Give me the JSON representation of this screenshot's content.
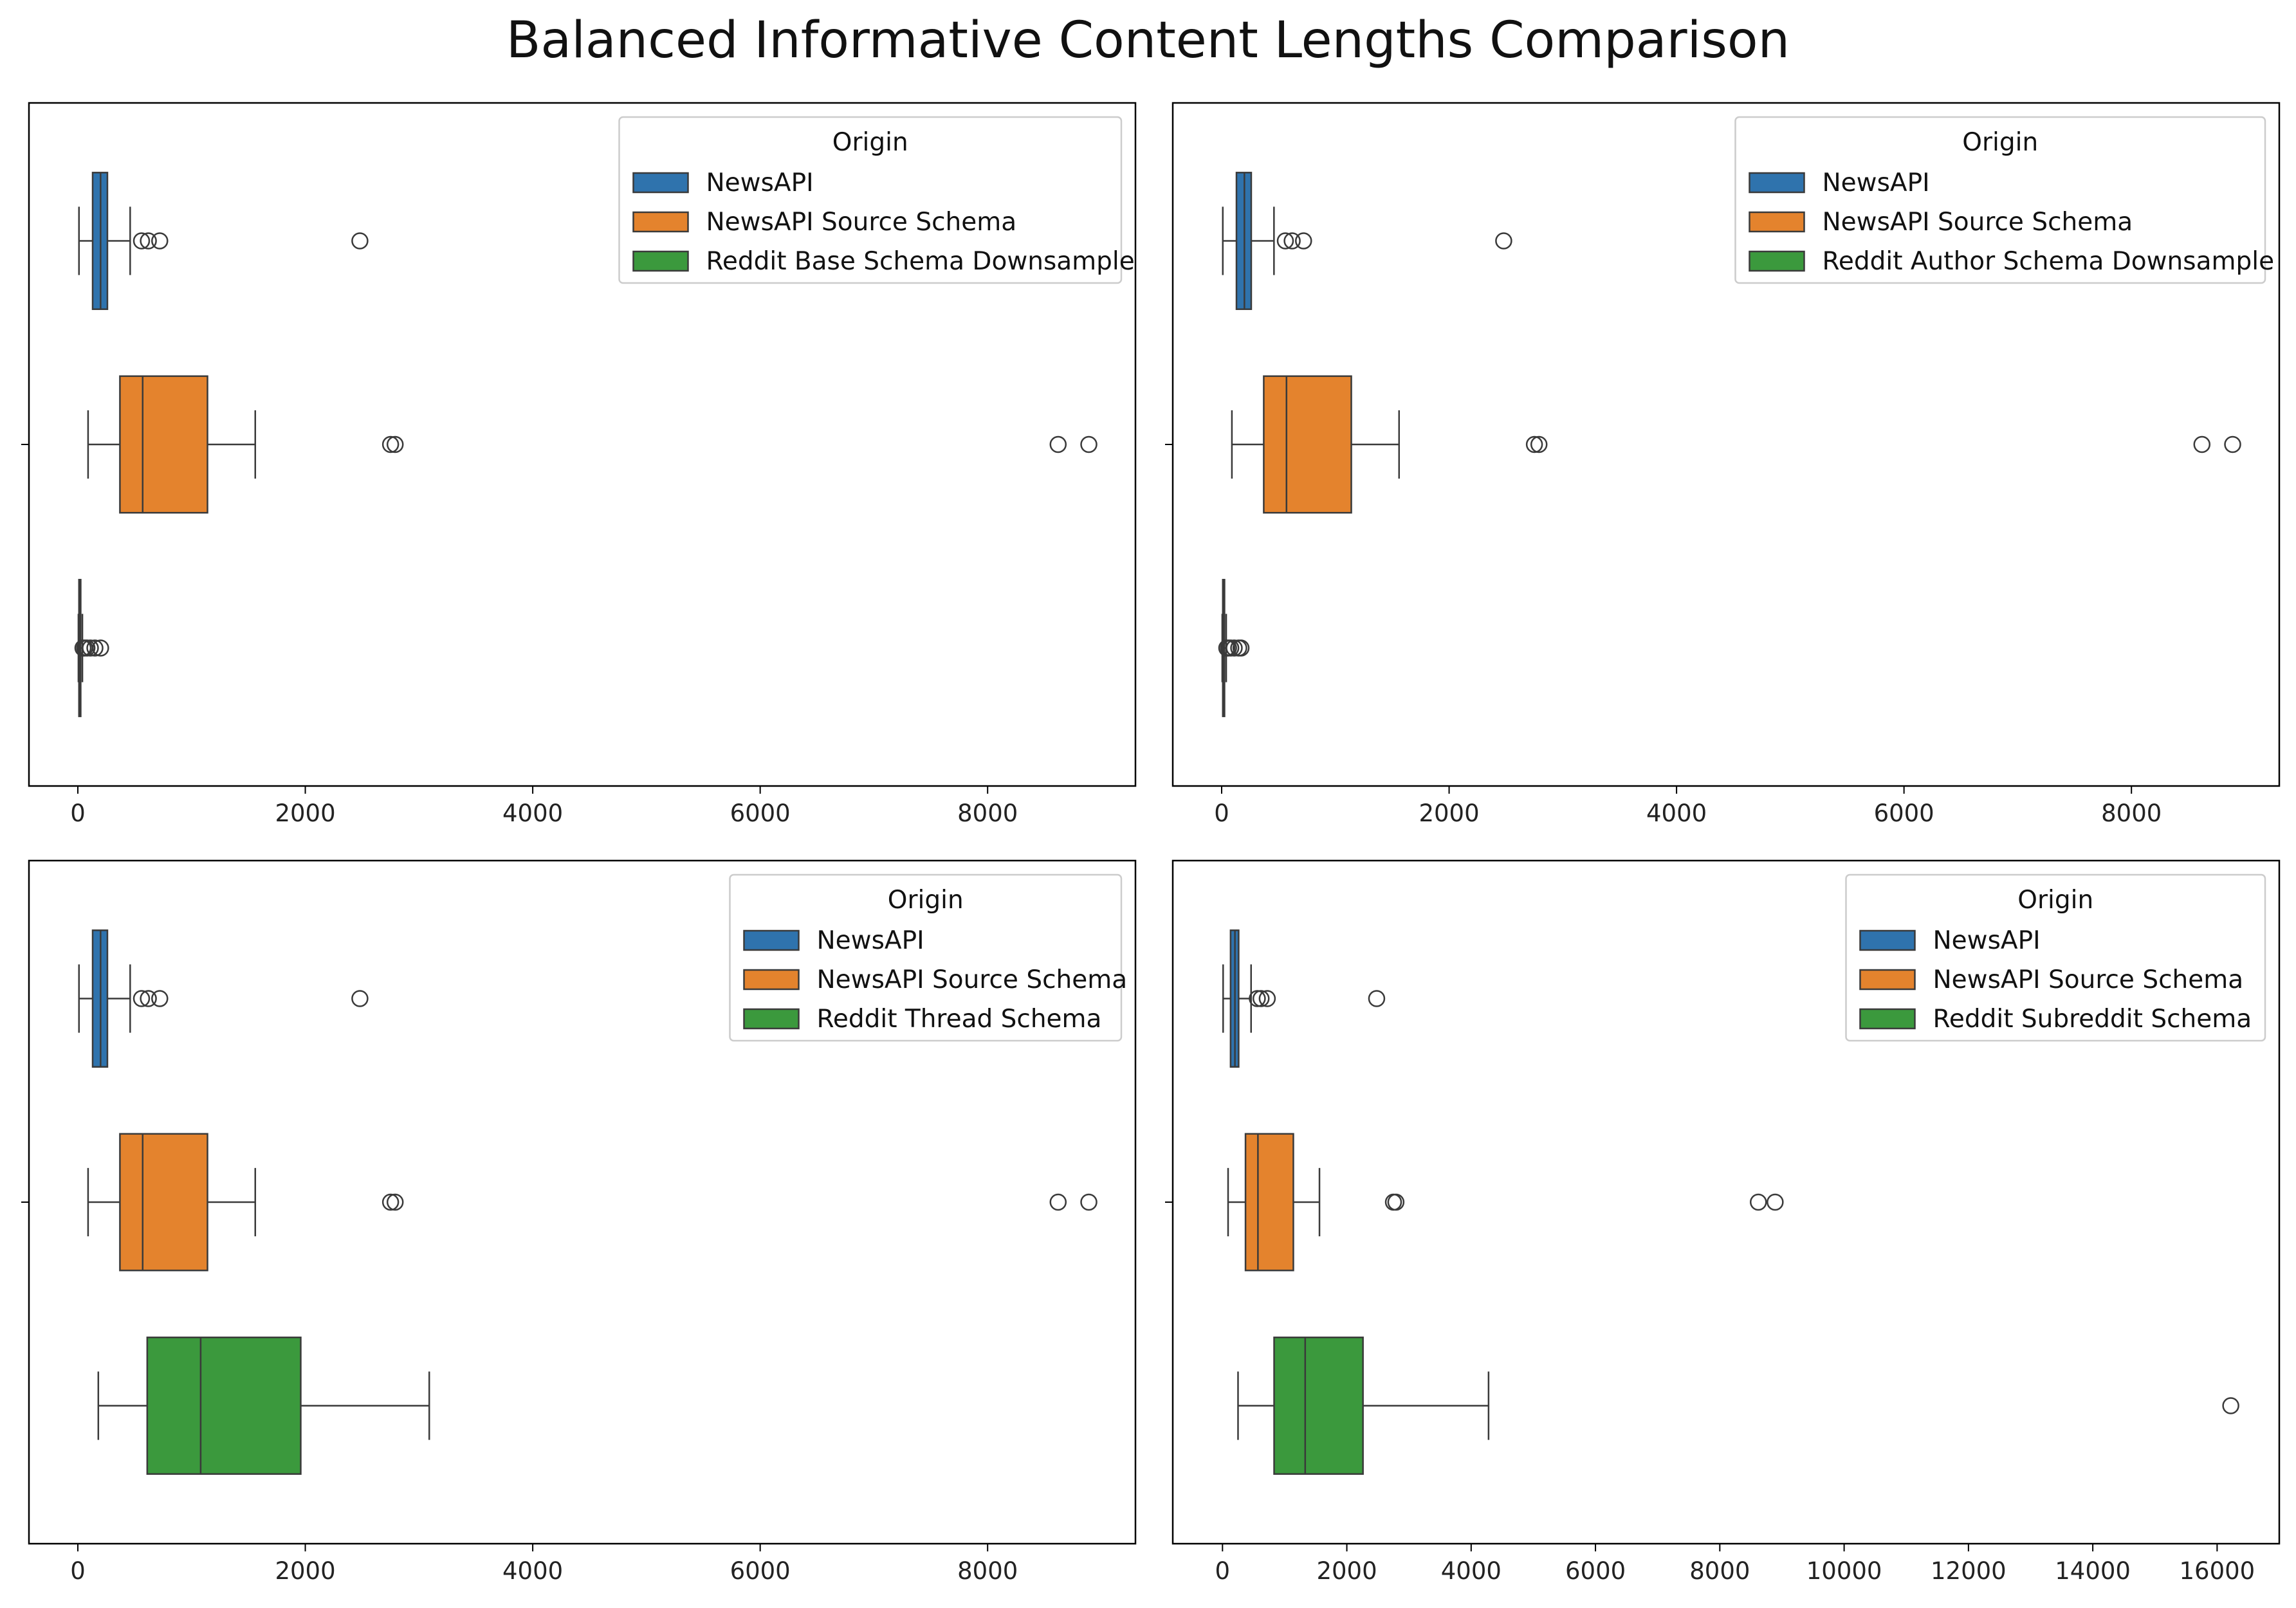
{
  "figure": {
    "title": "Balanced Informative Content Lengths Comparison"
  },
  "colors": {
    "NewsAPI": "#2f73ad",
    "NewsAPI Source Schema": "#e4832d",
    "Reddit": "#3b993d",
    "edge": "#3a3a3a"
  },
  "chart_data": [
    {
      "type": "boxplot",
      "orientation": "horizontal",
      "xlim": [
        -430,
        9300
      ],
      "xticks": [
        0,
        2000,
        4000,
        6000,
        8000
      ],
      "legend": {
        "title": "Origin",
        "placement": "top-right"
      },
      "series": [
        {
          "name": "NewsAPI",
          "color": "#2f73ad",
          "whisker_low": 10,
          "q1": 130,
          "median": 200,
          "q3": 260,
          "whisker_high": 460,
          "outliers": [
            560,
            620,
            720,
            2480
          ]
        },
        {
          "name": "NewsAPI Source Schema",
          "color": "#e4832d",
          "whisker_low": 90,
          "q1": 370,
          "median": 570,
          "q3": 1140,
          "whisker_high": 1560,
          "outliers": [
            2750,
            2790,
            8620,
            8890
          ]
        },
        {
          "name": "Reddit Base Schema Downsample",
          "color": "#3b993d",
          "whisker_low": 5,
          "q1": 10,
          "median": 15,
          "q3": 25,
          "whisker_high": 40,
          "outliers": [
            45,
            60,
            80,
            110,
            150,
            200
          ]
        }
      ]
    },
    {
      "type": "boxplot",
      "orientation": "horizontal",
      "xlim": [
        -430,
        9300
      ],
      "xticks": [
        0,
        2000,
        4000,
        6000,
        8000
      ],
      "legend": {
        "title": "Origin",
        "placement": "top-right"
      },
      "series": [
        {
          "name": "NewsAPI",
          "color": "#2f73ad",
          "whisker_low": 10,
          "q1": 130,
          "median": 200,
          "q3": 260,
          "whisker_high": 460,
          "outliers": [
            560,
            620,
            720,
            2480
          ]
        },
        {
          "name": "NewsAPI Source Schema",
          "color": "#e4832d",
          "whisker_low": 90,
          "q1": 370,
          "median": 570,
          "q3": 1140,
          "whisker_high": 1560,
          "outliers": [
            2750,
            2790,
            8620,
            8890
          ]
        },
        {
          "name": "Reddit Author Schema Downsample",
          "color": "#3b993d",
          "whisker_low": 5,
          "q1": 10,
          "median": 15,
          "q3": 25,
          "whisker_high": 40,
          "outliers": [
            45,
            60,
            80,
            110,
            150,
            170
          ]
        }
      ]
    },
    {
      "type": "boxplot",
      "orientation": "horizontal",
      "xlim": [
        -430,
        9300
      ],
      "xticks": [
        0,
        2000,
        4000,
        6000,
        8000
      ],
      "legend": {
        "title": "Origin",
        "placement": "top-right"
      },
      "series": [
        {
          "name": "NewsAPI",
          "color": "#2f73ad",
          "whisker_low": 10,
          "q1": 130,
          "median": 200,
          "q3": 260,
          "whisker_high": 460,
          "outliers": [
            560,
            620,
            720,
            2480
          ]
        },
        {
          "name": "NewsAPI Source Schema",
          "color": "#e4832d",
          "whisker_low": 90,
          "q1": 370,
          "median": 570,
          "q3": 1140,
          "whisker_high": 1560,
          "outliers": [
            2750,
            2790,
            8620,
            8890
          ]
        },
        {
          "name": "Reddit Thread Schema",
          "color": "#3b993d",
          "whisker_low": 180,
          "q1": 610,
          "median": 1080,
          "q3": 1960,
          "whisker_high": 3090,
          "outliers": []
        }
      ]
    },
    {
      "type": "boxplot",
      "orientation": "horizontal",
      "xlim": [
        -800,
        17000
      ],
      "xticks": [
        0,
        2000,
        4000,
        6000,
        8000,
        10000,
        12000,
        14000,
        16000
      ],
      "legend": {
        "title": "Origin",
        "placement": "top-right"
      },
      "series": [
        {
          "name": "NewsAPI",
          "color": "#2f73ad",
          "whisker_low": 10,
          "q1": 130,
          "median": 200,
          "q3": 260,
          "whisker_high": 460,
          "outliers": [
            560,
            620,
            720,
            2480
          ]
        },
        {
          "name": "NewsAPI Source Schema",
          "color": "#e4832d",
          "whisker_low": 90,
          "q1": 370,
          "median": 570,
          "q3": 1140,
          "whisker_high": 1560,
          "outliers": [
            2750,
            2790,
            8620,
            8890
          ]
        },
        {
          "name": "Reddit Subreddit Schema",
          "color": "#3b993d",
          "whisker_low": 250,
          "q1": 830,
          "median": 1330,
          "q3": 2260,
          "whisker_high": 4280,
          "outliers": [
            16220
          ]
        }
      ]
    }
  ]
}
